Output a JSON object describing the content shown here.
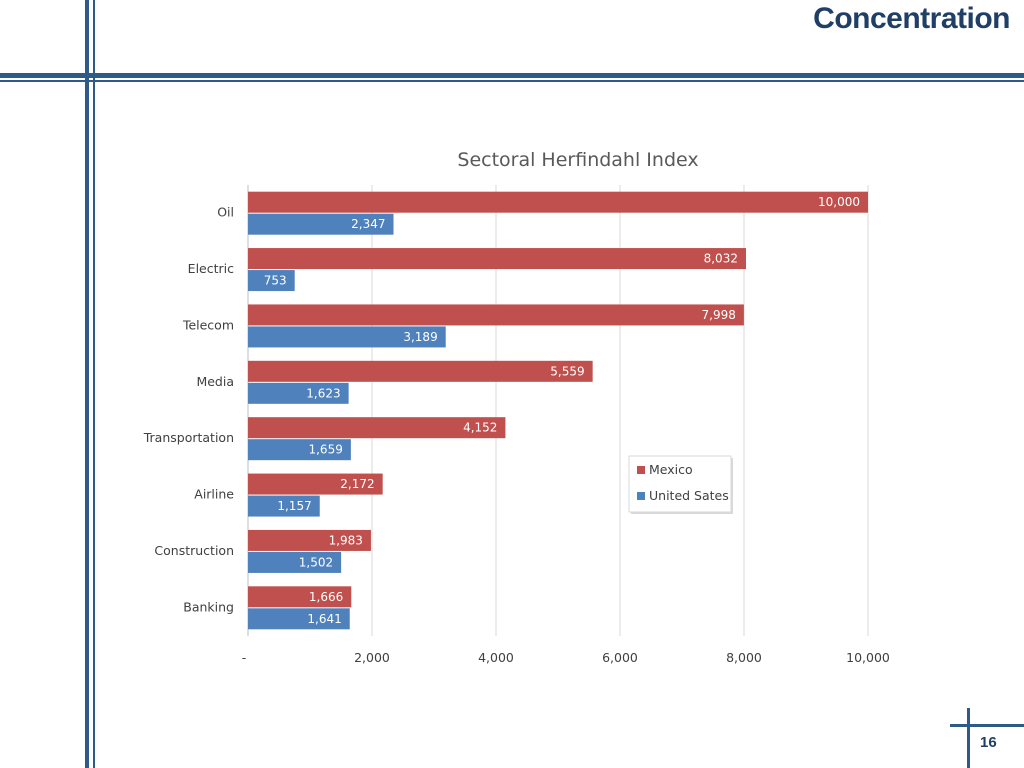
{
  "slide": {
    "title": "Concentration",
    "page_number": "16"
  },
  "colors": {
    "mexico": "#c0504d",
    "us": "#4f81bd",
    "accent": "#2e5a8a"
  },
  "chart_data": {
    "type": "bar",
    "orientation": "horizontal",
    "title": "Sectoral Herfindahl Index",
    "categories": [
      "Oil",
      "Electric",
      "Telecom",
      "Media",
      "Transportation",
      "Airline",
      "Construction",
      "Banking"
    ],
    "series": [
      {
        "name": "Mexico",
        "values": [
          10000,
          8032,
          7998,
          5559,
          4152,
          2172,
          1983,
          1666
        ],
        "labels": [
          "10,000",
          "8,032",
          "7,998",
          "5,559",
          "4,152",
          "2,172",
          "1,983",
          "1,666"
        ]
      },
      {
        "name": "United Sates",
        "values": [
          2347,
          753,
          3189,
          1623,
          1659,
          1157,
          1502,
          1641
        ],
        "labels": [
          "2,347",
          "753",
          "3,189",
          "1,623",
          "1,659",
          "1,157",
          "1,502",
          "1,641"
        ]
      }
    ],
    "xlim": [
      0,
      10000
    ],
    "xticks": [
      0,
      2000,
      4000,
      6000,
      8000,
      10000
    ],
    "xtick_labels": [
      "-",
      "2,000",
      "4,000",
      "6,000",
      "8,000",
      "10,000"
    ],
    "grid": true,
    "legend_position": "right"
  }
}
